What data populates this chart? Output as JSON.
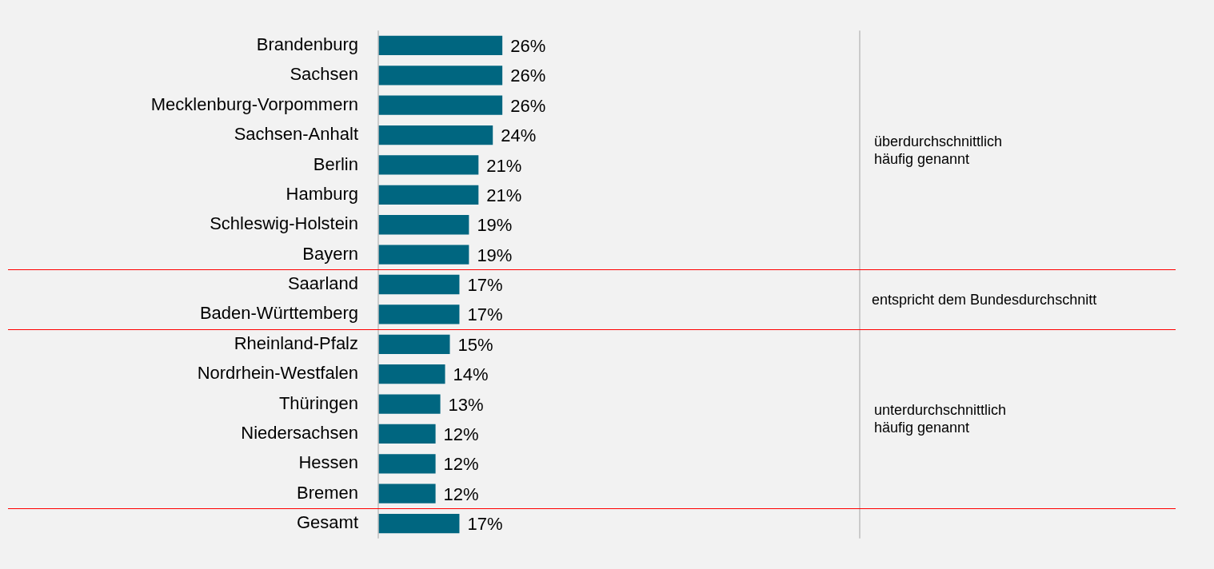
{
  "chart_data": {
    "type": "bar",
    "orientation": "horizontal",
    "categories": [
      "Brandenburg",
      "Sachsen",
      "Mecklenburg-Vorpommern",
      "Sachsen-Anhalt",
      "Berlin",
      "Hamburg",
      "Schleswig-Holstein",
      "Bayern",
      "Saarland",
      "Baden-Württemberg",
      "Rheinland-Pfalz",
      "Nordrhein-Westfalen",
      "Thüringen",
      "Niedersachsen",
      "Hessen",
      "Bremen",
      "Gesamt"
    ],
    "values": [
      26,
      26,
      26,
      24,
      21,
      21,
      19,
      19,
      17,
      17,
      15,
      14,
      13,
      12,
      12,
      12,
      17
    ],
    "value_labels": [
      "26%",
      "26%",
      "26%",
      "24%",
      "21%",
      "21%",
      "19%",
      "19%",
      "17%",
      "17%",
      "15%",
      "14%",
      "13%",
      "12%",
      "12%",
      "12%",
      "17%"
    ],
    "color": "#006680",
    "tick_labels": "y",
    "grid": false,
    "legend": false,
    "annotations": [
      "überdurchschnittlich häufig genannt",
      "entspricht dem Bundesdurchschnitt",
      "unterdurchschnittlich häufig genannt"
    ]
  }
}
